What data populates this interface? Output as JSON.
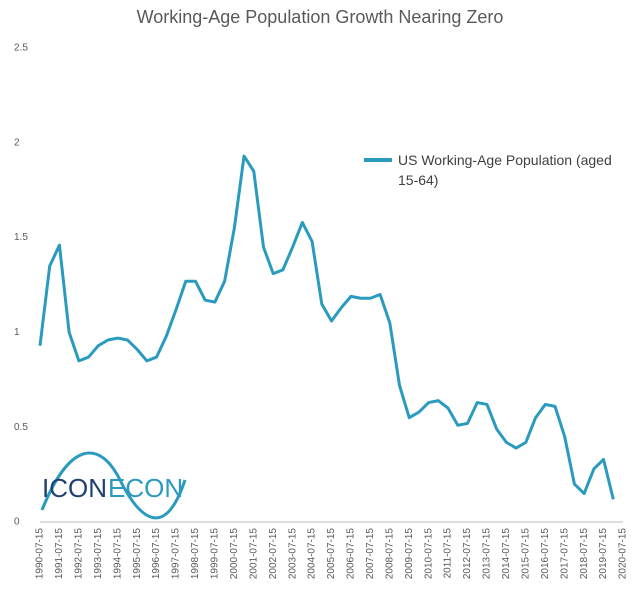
{
  "chart_data": {
    "type": "line",
    "title": "Working-Age Population Growth Nearing Zero",
    "categories": [
      "1990-07-15",
      null,
      "1991-07-15",
      null,
      "1992-07-15",
      null,
      "1993-07-15",
      null,
      "1994-07-15",
      null,
      "1995-07-15",
      null,
      "1996-07-15",
      null,
      "1997-07-15",
      null,
      "1998-07-15",
      null,
      "1999-07-15",
      null,
      "2000-07-15",
      null,
      "2001-07-15",
      null,
      "2002-07-15",
      null,
      "2003-07-15",
      null,
      "2004-07-15",
      null,
      "2005-07-15",
      null,
      "2006-07-15",
      null,
      "2007-07-15",
      null,
      "2008-07-15",
      null,
      "2009-07-15",
      null,
      "2010-07-15",
      null,
      "2011-07-15",
      null,
      "2012-07-15",
      null,
      "2013-07-15",
      null,
      "2014-07-15",
      null,
      "2015-07-15",
      null,
      "2016-07-15",
      null,
      "2017-07-15",
      null,
      "2018-07-15",
      null,
      "2019-07-15",
      null,
      "2020-07-15"
    ],
    "series": [
      {
        "name": "US Working-Age Population (aged 15-64)",
        "color": "#2a9bbf",
        "values": [
          0.93,
          1.35,
          1.46,
          1.0,
          0.85,
          0.87,
          0.93,
          0.96,
          0.97,
          0.96,
          0.91,
          0.85,
          0.87,
          0.98,
          1.12,
          1.27,
          1.27,
          1.17,
          1.16,
          1.27,
          1.55,
          1.93,
          1.85,
          1.45,
          1.31,
          1.33,
          1.45,
          1.58,
          1.48,
          1.15,
          1.06,
          1.13,
          1.19,
          1.18,
          1.18,
          1.2,
          1.05,
          0.72,
          0.55,
          0.58,
          0.63,
          0.64,
          0.6,
          0.51,
          0.52,
          0.63,
          0.62,
          0.49,
          0.42,
          0.39,
          0.42,
          0.55,
          0.62,
          0.61,
          0.45,
          0.2,
          0.15,
          0.28,
          0.33,
          0.12,
          null
        ]
      }
    ],
    "ylim": [
      0,
      2.5
    ],
    "yticks": [
      0,
      0.5,
      1,
      1.5,
      2,
      2.5
    ],
    "grid": false,
    "logo": [
      "ICON",
      "ECON"
    ]
  }
}
